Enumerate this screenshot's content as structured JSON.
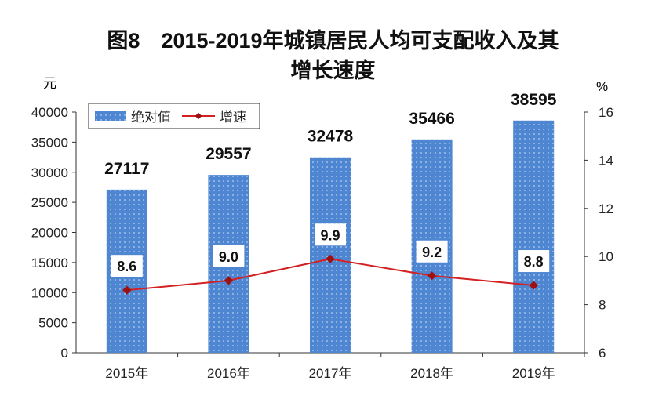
{
  "chart_data": {
    "type": "bar",
    "title_line1": "图8　2015-2019年城镇居民人均可支配收入及其",
    "title_line2": "增长速度",
    "ylabel_left": "元",
    "ylabel_right": "%",
    "categories": [
      "2015年",
      "2016年",
      "2017年",
      "2018年",
      "2019年"
    ],
    "ylim_left": [
      0,
      40000
    ],
    "yticks_left": [
      0,
      5000,
      10000,
      15000,
      20000,
      25000,
      30000,
      35000,
      40000
    ],
    "ylim_right": [
      6,
      16
    ],
    "yticks_right": [
      6,
      8,
      10,
      12,
      14,
      16
    ],
    "series": [
      {
        "name": "绝对值",
        "type": "bar",
        "axis": "left",
        "values": [
          27117,
          29557,
          32478,
          35466,
          38595
        ]
      },
      {
        "name": "增速",
        "type": "line",
        "axis": "right",
        "values": [
          8.6,
          9.0,
          9.9,
          9.2,
          8.8
        ],
        "labels": [
          "8.6",
          "9.0",
          "9.9",
          "9.2",
          "8.8"
        ]
      }
    ],
    "legend": "top-left",
    "colors": {
      "bar": "#4f86d1",
      "line": "#d42020",
      "marker": "#a01010"
    }
  }
}
